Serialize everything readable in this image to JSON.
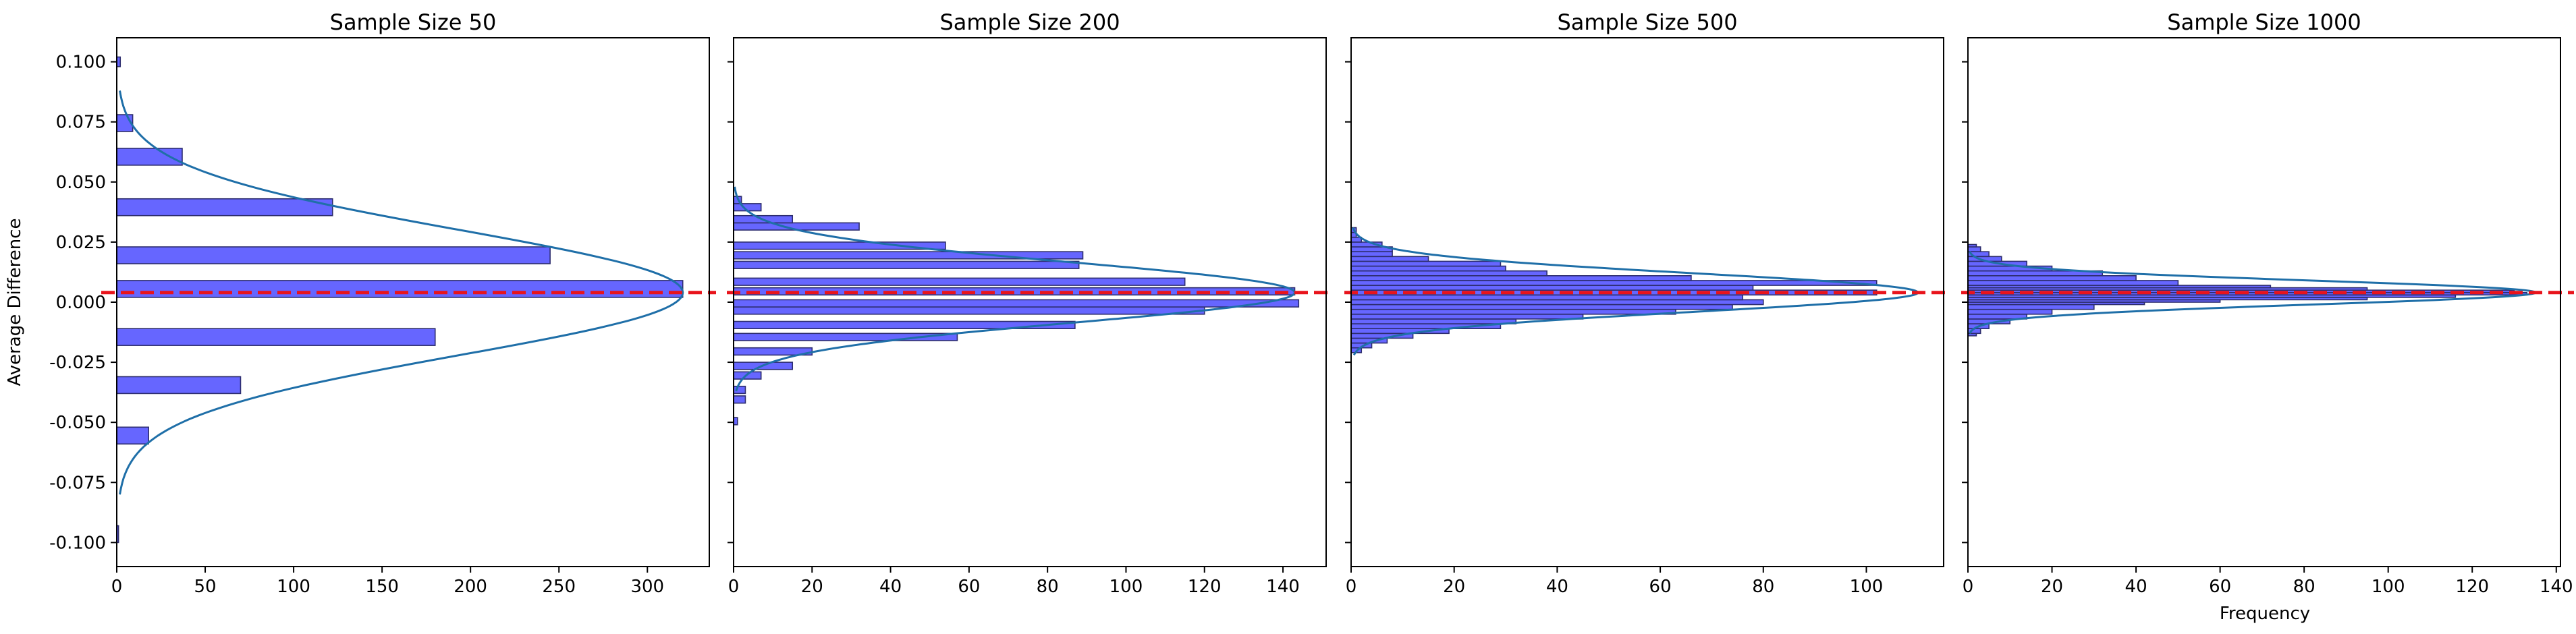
{
  "figure": {
    "ylabel": "Average Difference",
    "xlabel": "Frequency"
  },
  "colors": {
    "bar_fill": "#6666ff",
    "bar_edge": "#2d2d6e",
    "curve": "#1f6fa8",
    "mean_line": "#e8141c"
  },
  "chart_data": [
    {
      "type": "bar",
      "orientation": "horizontal",
      "title": "Sample Size 50",
      "xlim": [
        0,
        335
      ],
      "ylim": [
        -0.11,
        0.11
      ],
      "xticks": [
        0,
        50,
        100,
        150,
        200,
        250,
        300
      ],
      "yticks": [
        -0.1,
        -0.075,
        -0.05,
        -0.025,
        0.0,
        0.025,
        0.05,
        0.075,
        0.1
      ],
      "bins": [
        {
          "y0": -0.1,
          "y1": -0.093,
          "count": 1
        },
        {
          "y0": -0.059,
          "y1": -0.052,
          "count": 18
        },
        {
          "y0": -0.038,
          "y1": -0.031,
          "count": 70
        },
        {
          "y0": -0.018,
          "y1": -0.011,
          "count": 180
        },
        {
          "y0": 0.002,
          "y1": 0.009,
          "count": 320
        },
        {
          "y0": 0.016,
          "y1": 0.023,
          "count": 245
        },
        {
          "y0": 0.036,
          "y1": 0.043,
          "count": 122
        },
        {
          "y0": 0.057,
          "y1": 0.064,
          "count": 37
        },
        {
          "y0": 0.071,
          "y1": 0.078,
          "count": 9
        },
        {
          "y0": 0.098,
          "y1": 0.102,
          "count": 2
        }
      ],
      "curve": {
        "mean": 0.004,
        "sd": 0.026,
        "peak": 320,
        "y_range": [
          -0.08,
          0.088
        ]
      },
      "mean_line": 0.004
    },
    {
      "type": "bar",
      "orientation": "horizontal",
      "title": "Sample Size 200",
      "xlim": [
        0,
        151
      ],
      "ylim": [
        -0.11,
        0.11
      ],
      "xticks": [
        0,
        20,
        40,
        60,
        80,
        100,
        120,
        140
      ],
      "yticks": [
        -0.1,
        -0.075,
        -0.05,
        -0.025,
        0.0,
        0.025,
        0.05,
        0.075,
        0.1
      ],
      "bins": [
        {
          "y0": -0.051,
          "y1": -0.048,
          "count": 1
        },
        {
          "y0": -0.042,
          "y1": -0.039,
          "count": 3
        },
        {
          "y0": -0.038,
          "y1": -0.035,
          "count": 3
        },
        {
          "y0": -0.032,
          "y1": -0.029,
          "count": 7
        },
        {
          "y0": -0.028,
          "y1": -0.025,
          "count": 15
        },
        {
          "y0": -0.022,
          "y1": -0.019,
          "count": 20
        },
        {
          "y0": -0.016,
          "y1": -0.013,
          "count": 57
        },
        {
          "y0": -0.011,
          "y1": -0.008,
          "count": 87
        },
        {
          "y0": -0.005,
          "y1": -0.002,
          "count": 120
        },
        {
          "y0": -0.002,
          "y1": 0.001,
          "count": 144
        },
        {
          "y0": 0.003,
          "y1": 0.006,
          "count": 143
        },
        {
          "y0": 0.007,
          "y1": 0.01,
          "count": 115
        },
        {
          "y0": 0.014,
          "y1": 0.017,
          "count": 88
        },
        {
          "y0": 0.018,
          "y1": 0.021,
          "count": 89
        },
        {
          "y0": 0.022,
          "y1": 0.025,
          "count": 54
        },
        {
          "y0": 0.03,
          "y1": 0.033,
          "count": 32
        },
        {
          "y0": 0.033,
          "y1": 0.036,
          "count": 15
        },
        {
          "y0": 0.038,
          "y1": 0.041,
          "count": 7
        },
        {
          "y0": 0.041,
          "y1": 0.044,
          "count": 2
        }
      ],
      "curve": {
        "mean": 0.004,
        "sd": 0.0125,
        "peak": 143,
        "y_range": [
          -0.037,
          0.048
        ]
      },
      "mean_line": 0.004
    },
    {
      "type": "bar",
      "orientation": "horizontal",
      "title": "Sample Size 500",
      "xlim": [
        0,
        115
      ],
      "ylim": [
        -0.11,
        0.11
      ],
      "xticks": [
        0,
        20,
        40,
        60,
        80,
        100
      ],
      "yticks": [
        -0.1,
        -0.075,
        -0.05,
        -0.025,
        0.0,
        0.025,
        0.05,
        0.075,
        0.1
      ],
      "bins": [
        {
          "y0": -0.021,
          "y1": -0.019,
          "count": 2
        },
        {
          "y0": -0.019,
          "y1": -0.017,
          "count": 4
        },
        {
          "y0": -0.017,
          "y1": -0.015,
          "count": 7
        },
        {
          "y0": -0.015,
          "y1": -0.013,
          "count": 12
        },
        {
          "y0": -0.013,
          "y1": -0.011,
          "count": 19
        },
        {
          "y0": -0.011,
          "y1": -0.009,
          "count": 29
        },
        {
          "y0": -0.009,
          "y1": -0.007,
          "count": 32
        },
        {
          "y0": -0.007,
          "y1": -0.005,
          "count": 45
        },
        {
          "y0": -0.005,
          "y1": -0.003,
          "count": 63
        },
        {
          "y0": -0.003,
          "y1": -0.001,
          "count": 74
        },
        {
          "y0": -0.001,
          "y1": 0.001,
          "count": 80
        },
        {
          "y0": 0.001,
          "y1": 0.003,
          "count": 76
        },
        {
          "y0": 0.003,
          "y1": 0.005,
          "count": 102
        },
        {
          "y0": 0.005,
          "y1": 0.007,
          "count": 78
        },
        {
          "y0": 0.007,
          "y1": 0.009,
          "count": 102
        },
        {
          "y0": 0.009,
          "y1": 0.011,
          "count": 66
        },
        {
          "y0": 0.011,
          "y1": 0.013,
          "count": 38
        },
        {
          "y0": 0.013,
          "y1": 0.015,
          "count": 30
        },
        {
          "y0": 0.015,
          "y1": 0.017,
          "count": 29
        },
        {
          "y0": 0.017,
          "y1": 0.019,
          "count": 15
        },
        {
          "y0": 0.019,
          "y1": 0.021,
          "count": 8
        },
        {
          "y0": 0.021,
          "y1": 0.023,
          "count": 8
        },
        {
          "y0": 0.023,
          "y1": 0.025,
          "count": 6
        },
        {
          "y0": 0.025,
          "y1": 0.027,
          "count": 2
        },
        {
          "y0": 0.027,
          "y1": 0.029,
          "count": 1
        },
        {
          "y0": 0.029,
          "y1": 0.031,
          "count": 1
        }
      ],
      "curve": {
        "mean": 0.004,
        "sd": 0.008,
        "peak": 110,
        "y_range": [
          -0.022,
          0.031
        ]
      },
      "mean_line": 0.004
    },
    {
      "type": "bar",
      "orientation": "horizontal",
      "title": "Sample Size 1000",
      "xlim": [
        0,
        141
      ],
      "ylim": [
        -0.11,
        0.11
      ],
      "xticks": [
        0,
        20,
        40,
        60,
        80,
        100,
        120,
        140
      ],
      "yticks": [
        -0.1,
        -0.075,
        -0.05,
        -0.025,
        0.0,
        0.025,
        0.05,
        0.075,
        0.1
      ],
      "bins": [
        {
          "y0": -0.014,
          "y1": -0.013,
          "count": 2
        },
        {
          "y0": -0.013,
          "y1": -0.011,
          "count": 3
        },
        {
          "y0": -0.011,
          "y1": -0.009,
          "count": 5
        },
        {
          "y0": -0.009,
          "y1": -0.007,
          "count": 10
        },
        {
          "y0": -0.007,
          "y1": -0.005,
          "count": 14
        },
        {
          "y0": -0.005,
          "y1": -0.003,
          "count": 20
        },
        {
          "y0": -0.003,
          "y1": -0.001,
          "count": 30
        },
        {
          "y0": -0.001,
          "y1": 0.0,
          "count": 42
        },
        {
          "y0": 0.0,
          "y1": 0.001,
          "count": 60
        },
        {
          "y0": 0.001,
          "y1": 0.002,
          "count": 95
        },
        {
          "y0": 0.002,
          "y1": 0.003,
          "count": 116
        },
        {
          "y0": 0.003,
          "y1": 0.004,
          "count": 133
        },
        {
          "y0": 0.004,
          "y1": 0.005,
          "count": 130
        },
        {
          "y0": 0.005,
          "y1": 0.006,
          "count": 95
        },
        {
          "y0": 0.006,
          "y1": 0.007,
          "count": 72
        },
        {
          "y0": 0.007,
          "y1": 0.009,
          "count": 50
        },
        {
          "y0": 0.009,
          "y1": 0.011,
          "count": 40
        },
        {
          "y0": 0.011,
          "y1": 0.013,
          "count": 32
        },
        {
          "y0": 0.013,
          "y1": 0.015,
          "count": 20
        },
        {
          "y0": 0.015,
          "y1": 0.017,
          "count": 14
        },
        {
          "y0": 0.017,
          "y1": 0.019,
          "count": 8
        },
        {
          "y0": 0.019,
          "y1": 0.021,
          "count": 5
        },
        {
          "y0": 0.021,
          "y1": 0.023,
          "count": 3
        },
        {
          "y0": 0.023,
          "y1": 0.024,
          "count": 2
        }
      ],
      "curve": {
        "mean": 0.004,
        "sd": 0.005,
        "peak": 135,
        "y_range": [
          -0.013,
          0.021
        ]
      },
      "mean_line": 0.004
    }
  ]
}
